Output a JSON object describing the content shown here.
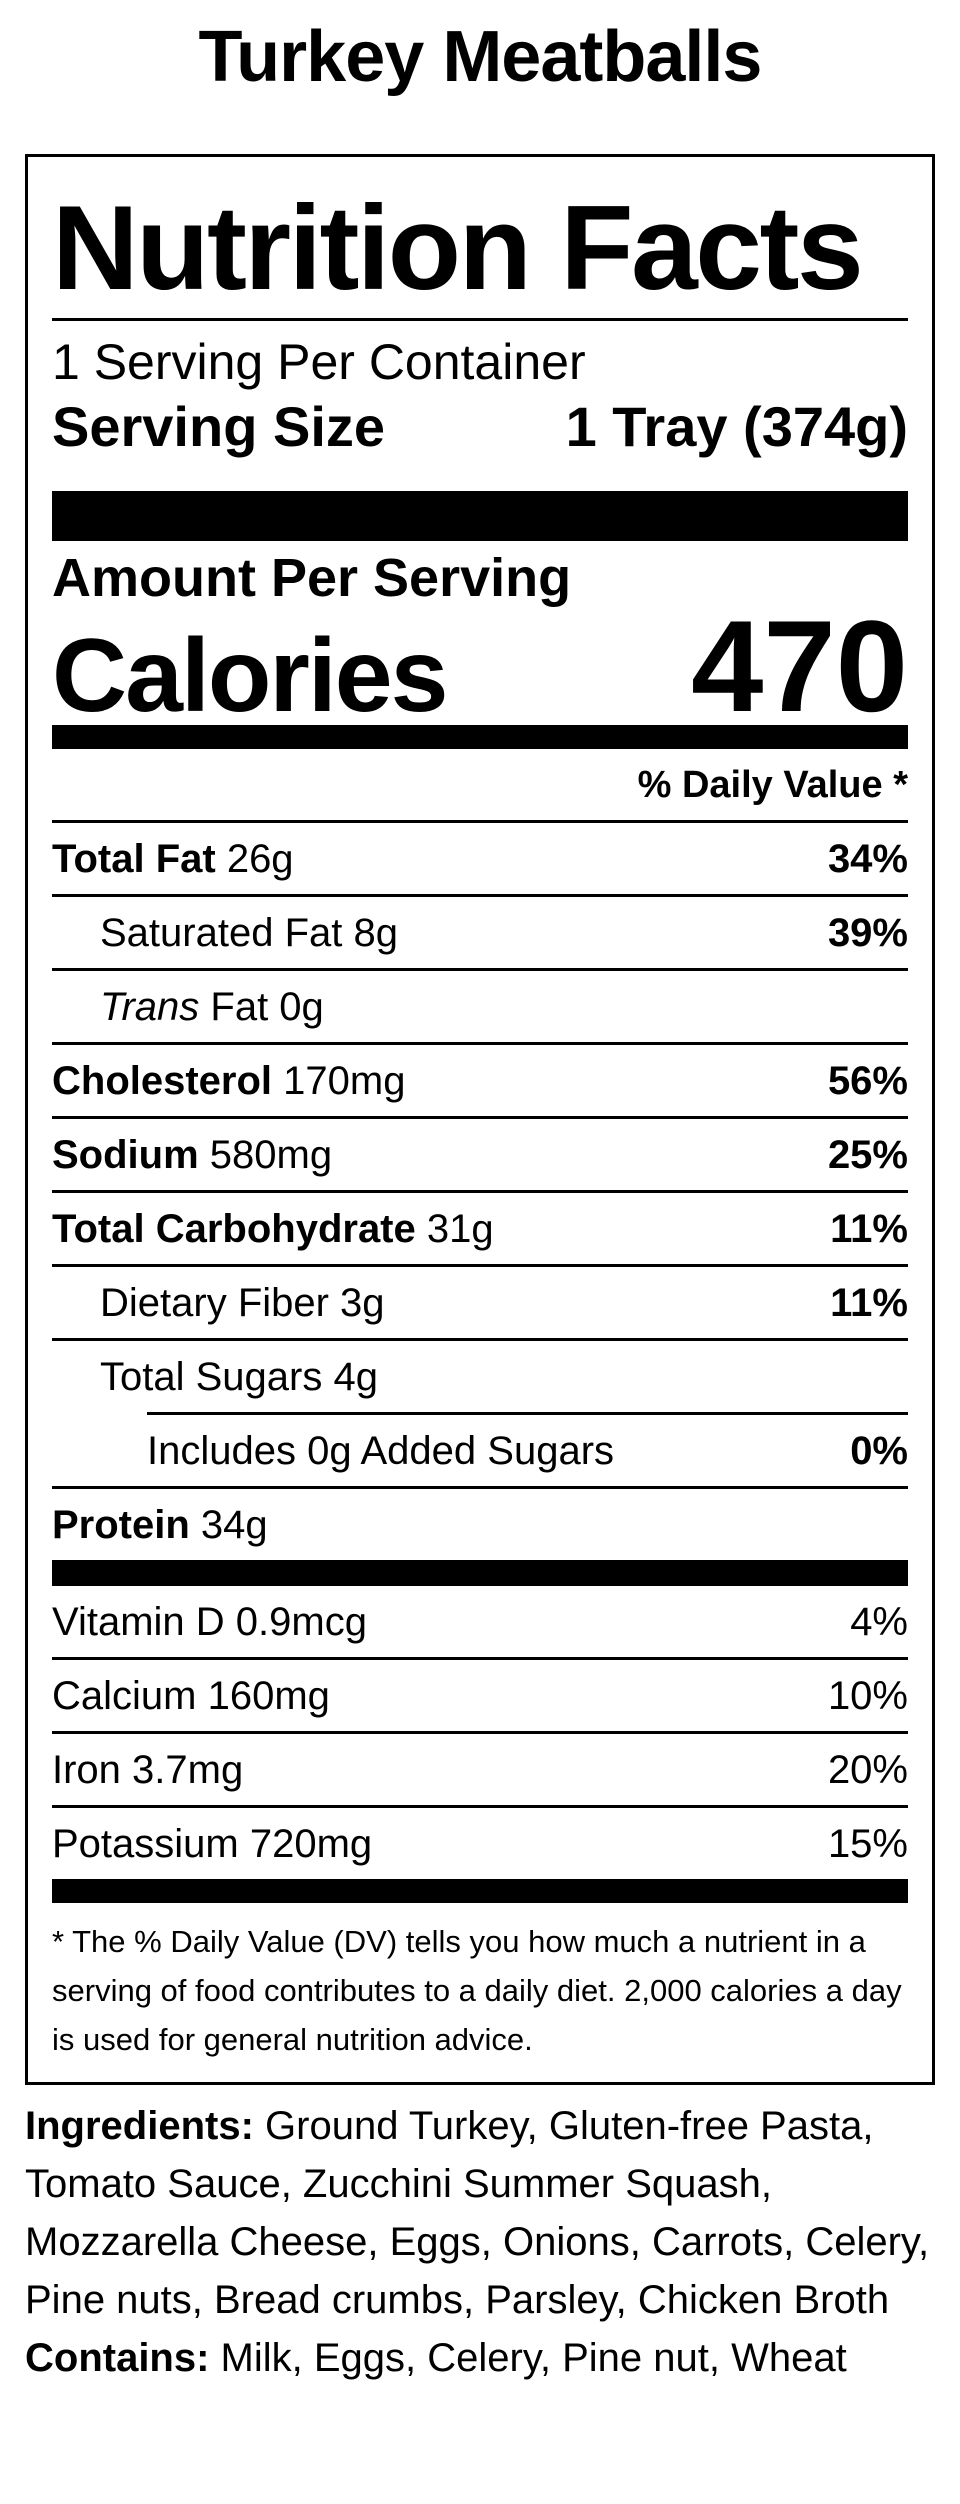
{
  "page": {
    "title": "Turkey Meatballs",
    "background_color": "#ffffff",
    "text_color": "#000000"
  },
  "nutrition_label": {
    "title": "Nutrition Facts",
    "servings_per_container": "1 Serving Per Container",
    "serving_size": {
      "label": "Serving Size",
      "value": "1 Tray (374g)"
    },
    "amount_per_serving": "Amount Per Serving",
    "calories": {
      "label": "Calories",
      "value": "470"
    },
    "daily_value_header": "% Daily Value *",
    "nutrients": [
      {
        "name_bold": "Total Fat",
        "name_rest": " 26g",
        "dv": "34%",
        "dv_bold": true,
        "indent": 0
      },
      {
        "name_rest": "Saturated Fat 8g",
        "dv": "39%",
        "dv_bold": true,
        "indent": 1
      },
      {
        "name_italic": "Trans",
        "name_rest": " Fat 0g",
        "dv": "",
        "indent": 1
      },
      {
        "name_bold": "Cholesterol",
        "name_rest": " 170mg",
        "dv": "56%",
        "dv_bold": true,
        "indent": 0
      },
      {
        "name_bold": "Sodium",
        "name_rest": " 580mg",
        "dv": "25%",
        "dv_bold": true,
        "indent": 0
      },
      {
        "name_bold": "Total Carbohydrate",
        "name_rest": " 31g",
        "dv": "11%",
        "dv_bold": true,
        "indent": 0
      },
      {
        "name_rest": "Dietary Fiber 3g",
        "dv": "11%",
        "dv_bold": true,
        "indent": 1
      },
      {
        "name_rest": "Total Sugars 4g",
        "dv": "",
        "indent": 1,
        "divider_indented": true
      },
      {
        "name_rest": "Includes 0g Added Sugars",
        "dv": "0%",
        "dv_bold": true,
        "indent": 2
      },
      {
        "name_bold": "Protein",
        "name_rest": " 34g",
        "dv": "",
        "indent": 0,
        "no_divider": true
      }
    ],
    "vitamins": [
      {
        "name": "Vitamin D 0.9mcg",
        "dv": "4%"
      },
      {
        "name": "Calcium 160mg",
        "dv": "10%"
      },
      {
        "name": "Iron 3.7mg",
        "dv": "20%"
      },
      {
        "name": "Potassium 720mg",
        "dv": "15%"
      }
    ],
    "footnote": "* The % Daily Value (DV) tells you how much a nutrient in a serving of food contributes to a daily diet. 2,000 calories a day is used for general nutrition advice."
  },
  "ingredients_section": {
    "ingredients_label": "Ingredients:",
    "ingredients_text": " Ground Turkey, Gluten-free Pasta, Tomato Sauce, Zucchini Summer Squash, Mozzarella Cheese, Eggs, Onions, Carrots, Celery, Pine nuts, Bread crumbs, Parsley, Chicken Broth",
    "contains_label": "Contains:",
    "contains_text": " Milk, Eggs, Celery, Pine nut, Wheat"
  }
}
